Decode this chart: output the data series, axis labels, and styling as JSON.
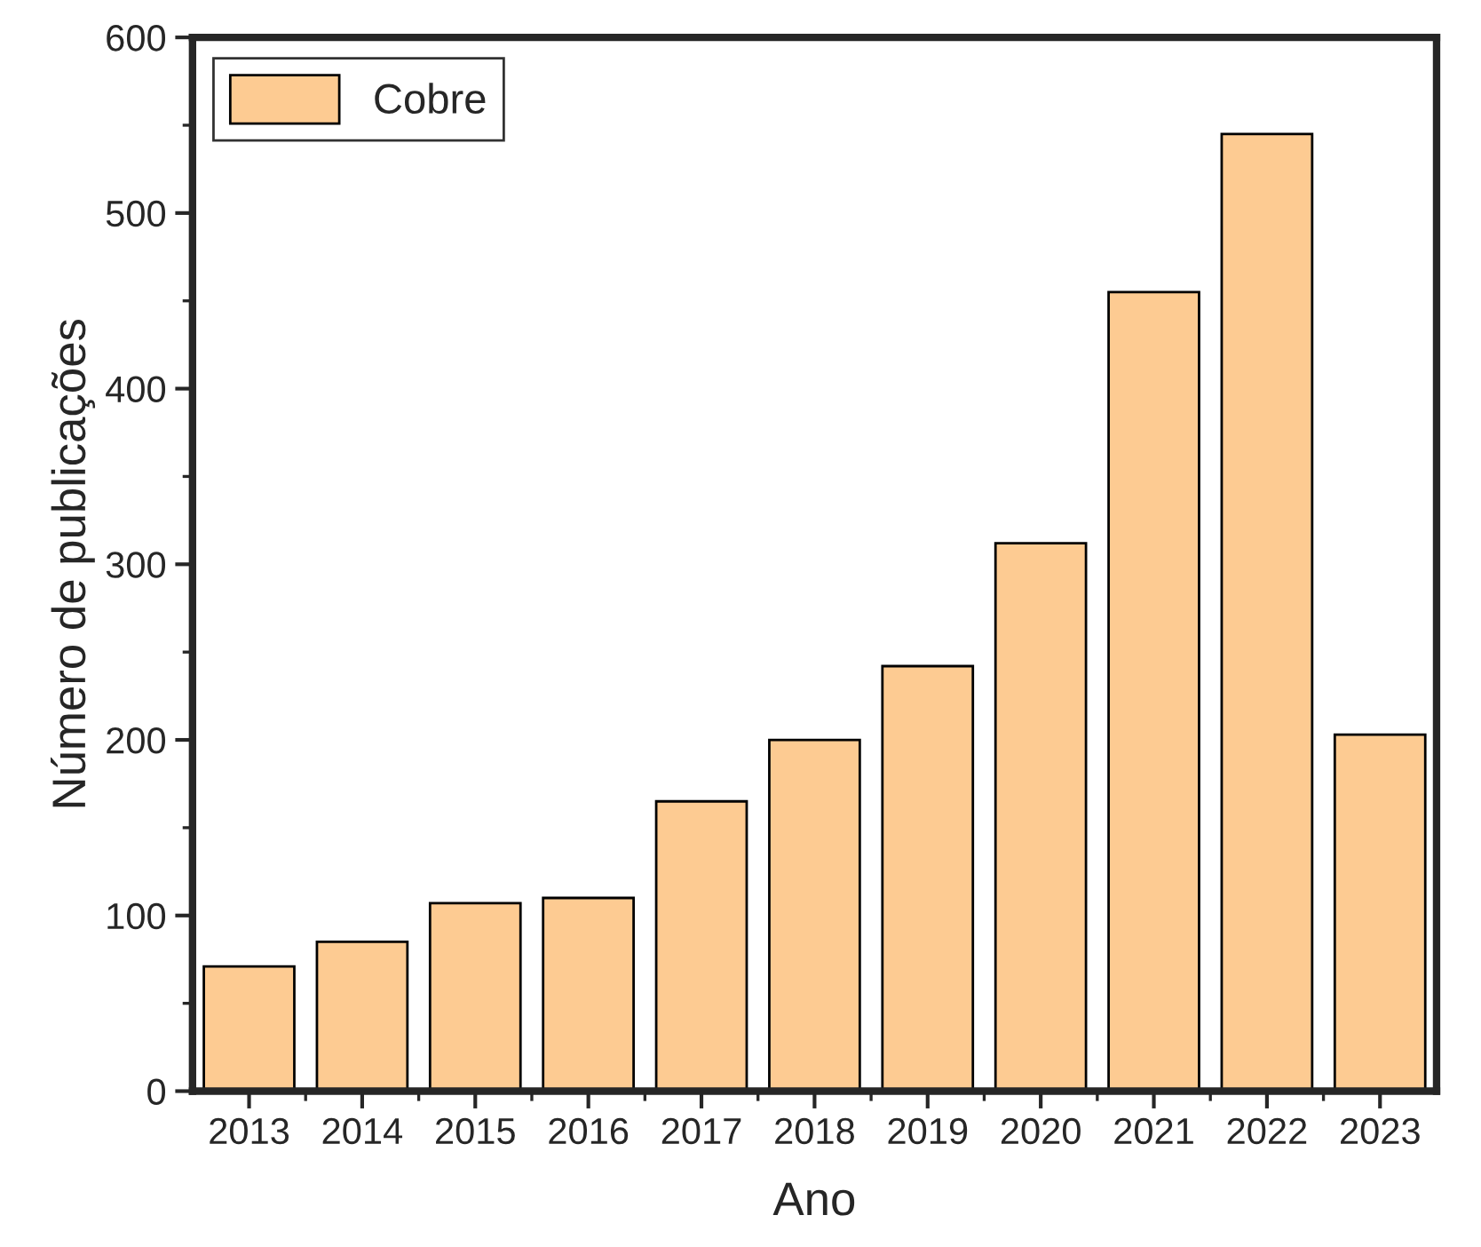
{
  "chart_data": {
    "type": "bar",
    "xlabel": "Ano",
    "ylabel": "Número de publicações",
    "categories": [
      "2013",
      "2014",
      "2015",
      "2016",
      "2017",
      "2018",
      "2019",
      "2020",
      "2021",
      "2022",
      "2023"
    ],
    "series": [
      {
        "name": "Cobre",
        "color": "#fdcb92",
        "values": [
          71,
          85,
          107,
          110,
          165,
          200,
          242,
          312,
          455,
          545,
          203
        ]
      }
    ],
    "ylim": [
      0,
      600
    ],
    "yticks": [
      0,
      100,
      200,
      300,
      400,
      500,
      600
    ],
    "grid": false,
    "legend": "top left"
  }
}
